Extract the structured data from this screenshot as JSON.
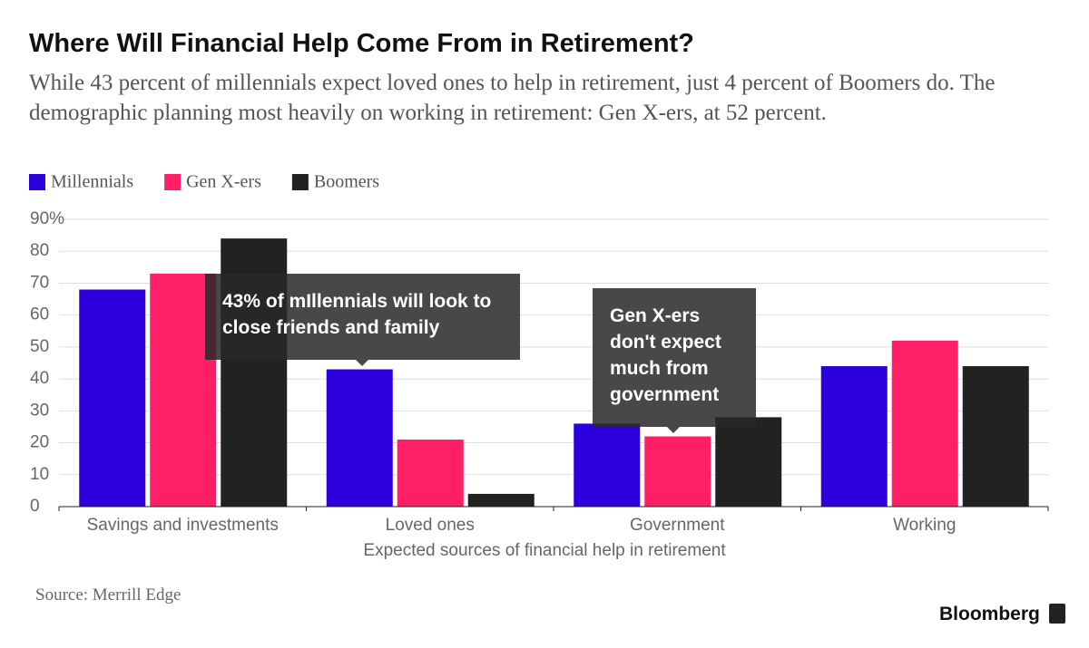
{
  "chart_data": {
    "type": "bar",
    "title": "Where Will Financial Help Come From in Retirement?",
    "subtitle": "While 43 percent of millennials expect loved ones to help in retirement, just 4 percent of Boomers do. The demographic planning most heavily on working in retirement: Gen X-ers, at 52 percent.",
    "categories": [
      "Savings and investments",
      "Loved ones",
      "Government",
      "Working"
    ],
    "series": [
      {
        "name": "Millennials",
        "color": "#2c00dc",
        "values": [
          68,
          43,
          26,
          44
        ]
      },
      {
        "name": "Gen X-ers",
        "color": "#ff1f66",
        "values": [
          73,
          21,
          22,
          52
        ]
      },
      {
        "name": "Boomers",
        "color": "#222222",
        "values": [
          84,
          4,
          28,
          44
        ]
      }
    ],
    "ylim": [
      0,
      90
    ],
    "yticks": [
      0,
      10,
      20,
      30,
      40,
      50,
      60,
      70,
      80,
      {
        "value": 90,
        "label": "90%"
      }
    ],
    "grid": true,
    "legend": "top-left",
    "xlabel": "Expected sources of financial help in retirement",
    "annotations": [
      "43% of mIllennials will look to close friends and family",
      "Gen X-ers don't expect much from government"
    ],
    "source": "Source: Merrill Edge",
    "logo": "Bloomberg"
  }
}
